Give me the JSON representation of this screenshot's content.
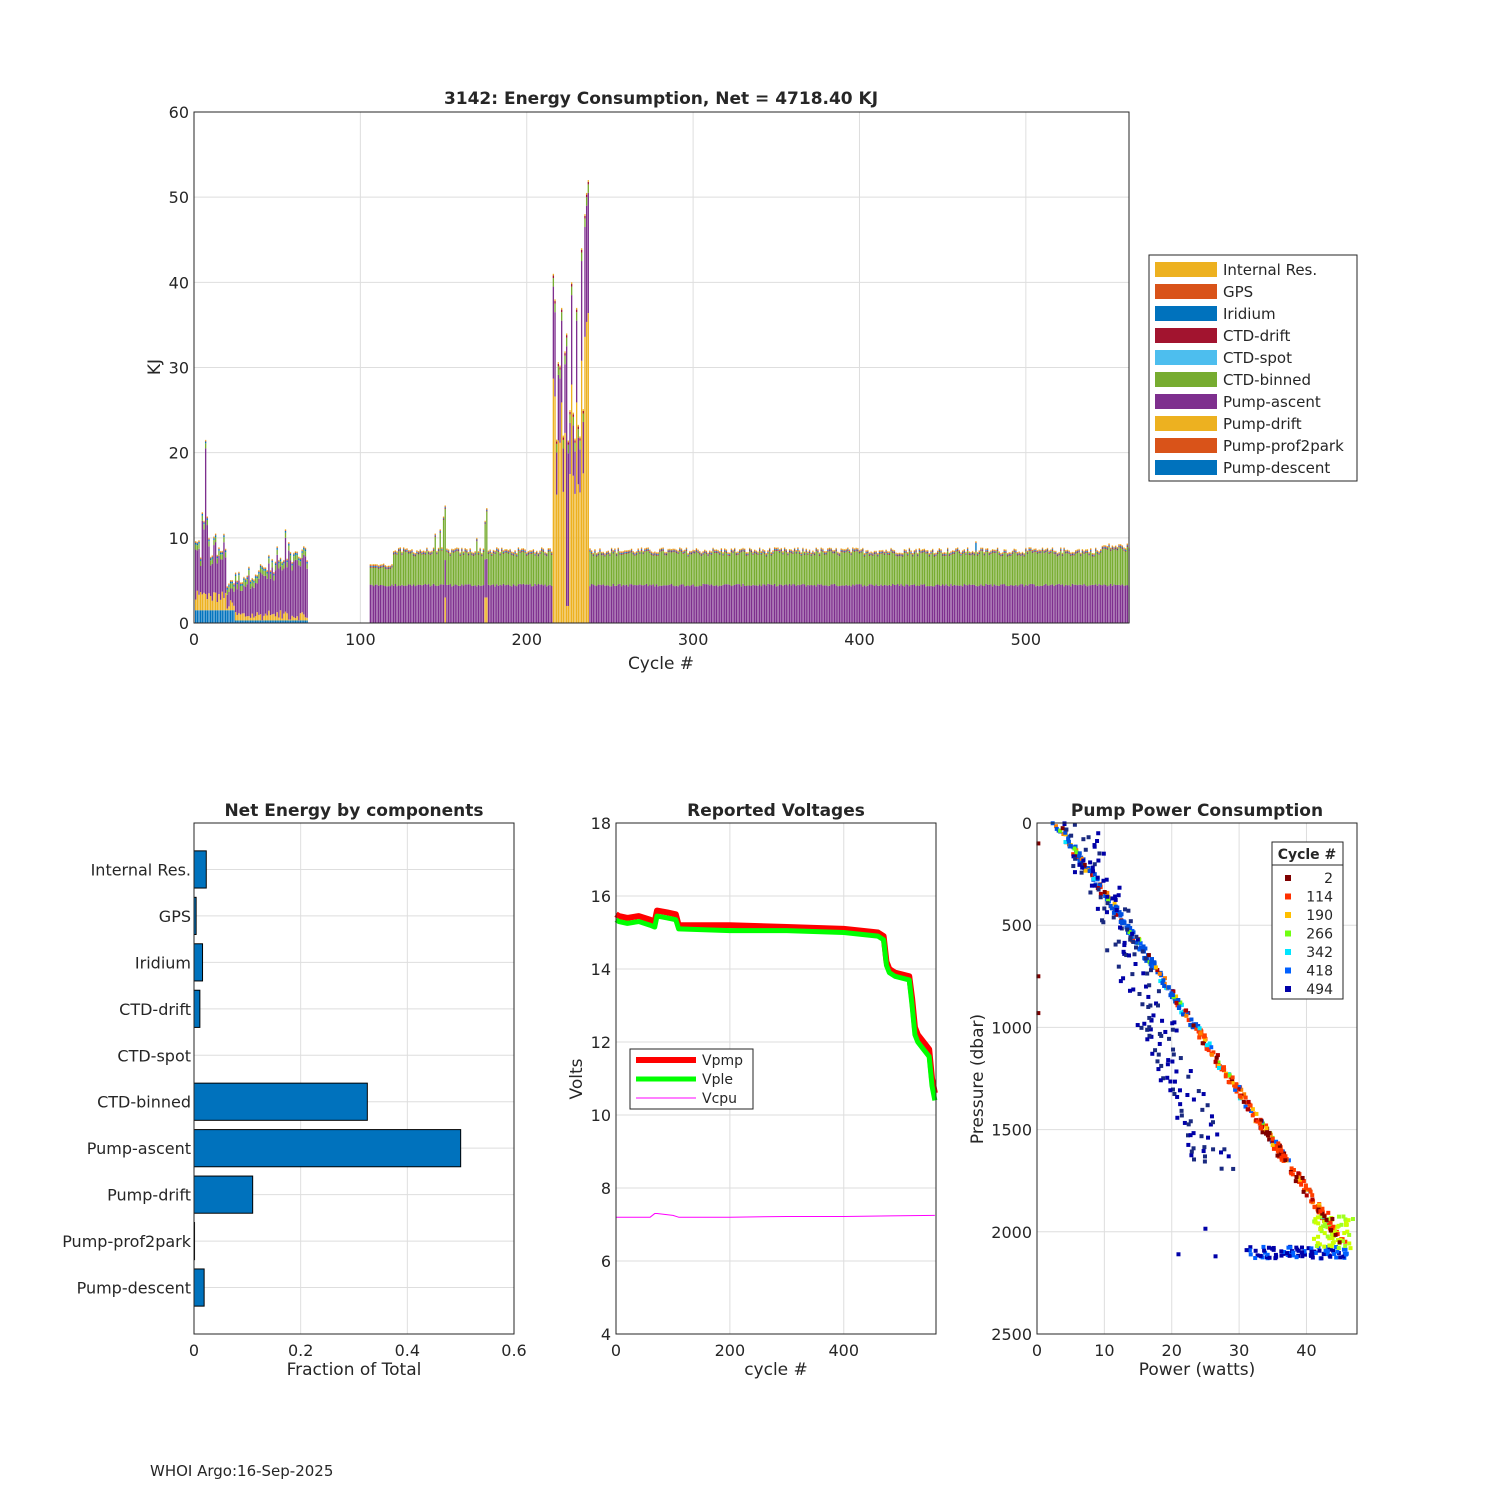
{
  "footer": "WHOI Argo:16-Sep-2025",
  "colors": {
    "internal_res": "#EDB120",
    "gps": "#D95319",
    "iridium": "#0072BD",
    "ctd_drift": "#A2142F",
    "ctd_spot": "#4DBEEE",
    "ctd_binned": "#77AC30",
    "pump_ascent": "#7E2F8E",
    "pump_drift": "#EDB120",
    "pump_prof2park": "#D95319",
    "pump_descent": "#0072BD",
    "vpmp": "#ff0000",
    "vple": "#00ff00",
    "vcpu": "#ff00ff"
  },
  "chart_data": [
    {
      "id": "energy",
      "type": "bar",
      "stacked": true,
      "title": "3142: Energy Consumption,  Net = 4718.40 KJ",
      "xlabel": "Cycle #",
      "ylabel": "KJ",
      "xlim": [
        0,
        562
      ],
      "ylim": [
        0,
        60
      ],
      "xticks": [
        0,
        100,
        200,
        300,
        400,
        500
      ],
      "yticks": [
        0,
        10,
        20,
        30,
        40,
        50,
        60
      ],
      "legend_position": "outside-right",
      "legend": [
        "Internal Res.",
        "GPS",
        "Iridium",
        "CTD-drift",
        "CTD-spot",
        "CTD-binned",
        "Pump-ascent",
        "Pump-drift",
        "Pump-prof2park",
        "Pump-descent"
      ],
      "stack_order": [
        "Pump-descent",
        "Pump-prof2park",
        "Pump-drift",
        "Pump-ascent",
        "CTD-binned",
        "CTD-spot",
        "CTD-drift",
        "Iridium",
        "GPS",
        "Internal Res."
      ],
      "series_summary": [
        {
          "cycles": [
            1,
            68
          ],
          "typical_total": 7,
          "peak_cycle": 7,
          "peak_total": 21.5
        },
        {
          "cycles": [
            69,
            105
          ],
          "gap": true
        },
        {
          "cycles": [
            106,
            215
          ],
          "typical_total": 8.5,
          "peak_cycle": 151,
          "peak_total": 13.8
        },
        {
          "cycles": [
            216,
            237
          ],
          "typical_total": 35,
          "peak_cycle": 237,
          "peak_total": 52
        },
        {
          "cycles": [
            238,
            562
          ],
          "typical_total": 8.5,
          "pump_ascent": 4.5,
          "ctd_binned": 3.6
        }
      ]
    },
    {
      "id": "net-energy",
      "type": "barh",
      "title": "Net Energy by components",
      "xlabel": "Fraction of Total",
      "xlim": [
        0,
        0.6
      ],
      "xticks": [
        0,
        0.2,
        0.4,
        0.6
      ],
      "categories": [
        "Internal Res.",
        "GPS",
        "Iridium",
        "CTD-drift",
        "CTD-spot",
        "CTD-binned",
        "Pump-ascent",
        "Pump-drift",
        "Pump-prof2park",
        "Pump-descent"
      ],
      "values": [
        0.023,
        0.004,
        0.016,
        0.011,
        0.0,
        0.325,
        0.5,
        0.11,
        0.001,
        0.019
      ]
    },
    {
      "id": "voltages",
      "type": "line",
      "title": "Reported Voltages",
      "xlabel": "cycle #",
      "ylabel": "Volts",
      "xlim": [
        0,
        562
      ],
      "ylim": [
        4,
        18
      ],
      "xticks": [
        0,
        200,
        400
      ],
      "yticks": [
        4,
        6,
        8,
        10,
        12,
        14,
        16,
        18
      ],
      "legend_position": "middle-left",
      "series": [
        {
          "name": "Vpmp",
          "x": [
            0,
            5,
            20,
            40,
            60,
            68,
            72,
            90,
            105,
            110,
            200,
            300,
            400,
            460,
            470,
            475,
            480,
            490,
            515,
            520,
            525,
            530,
            540,
            550,
            555,
            560
          ],
          "y": [
            15.5,
            15.45,
            15.4,
            15.45,
            15.35,
            15.3,
            15.6,
            15.55,
            15.5,
            15.2,
            15.2,
            15.15,
            15.1,
            15.0,
            14.9,
            14.2,
            14.0,
            13.9,
            13.8,
            13.2,
            12.4,
            12.2,
            12.0,
            11.8,
            11.0,
            10.6
          ]
        },
        {
          "name": "Vple",
          "x": [
            0,
            5,
            20,
            40,
            60,
            68,
            72,
            90,
            105,
            110,
            200,
            300,
            400,
            460,
            470,
            475,
            480,
            490,
            515,
            520,
            525,
            530,
            540,
            550,
            555,
            560
          ],
          "y": [
            15.35,
            15.3,
            15.25,
            15.3,
            15.2,
            15.15,
            15.45,
            15.4,
            15.35,
            15.1,
            15.05,
            15.05,
            15.0,
            14.9,
            14.8,
            14.1,
            13.9,
            13.8,
            13.7,
            13.0,
            12.2,
            12.0,
            11.8,
            11.6,
            10.8,
            10.4
          ]
        },
        {
          "name": "Vcpu",
          "x": [
            0,
            60,
            68,
            72,
            100,
            110,
            200,
            300,
            400,
            500,
            560
          ],
          "y": [
            7.2,
            7.2,
            7.3,
            7.3,
            7.25,
            7.2,
            7.2,
            7.22,
            7.22,
            7.24,
            7.25
          ]
        }
      ]
    },
    {
      "id": "pump-power",
      "type": "scatter",
      "title": "Pump Power Consumption",
      "xlabel": "Power (watts)",
      "ylabel": "Pressure (dbar)",
      "xlim": [
        0,
        47.5
      ],
      "ylim": [
        0,
        2500
      ],
      "y_reversed": true,
      "xticks": [
        0,
        10,
        20,
        30,
        40
      ],
      "yticks": [
        0,
        500,
        1000,
        1500,
        2000,
        2500
      ],
      "legend_title": "Cycle #",
      "legend_position": "top-right",
      "series": [
        {
          "name": "2",
          "color": "#7f0000"
        },
        {
          "name": "114",
          "color": "#ff3000"
        },
        {
          "name": "190",
          "color": "#ffbf00"
        },
        {
          "name": "266",
          "color": "#70ff10"
        },
        {
          "name": "342",
          "color": "#00e5ff"
        },
        {
          "name": "418",
          "color": "#0060ff"
        },
        {
          "name": "494",
          "color": "#0000a8"
        }
      ]
    }
  ]
}
